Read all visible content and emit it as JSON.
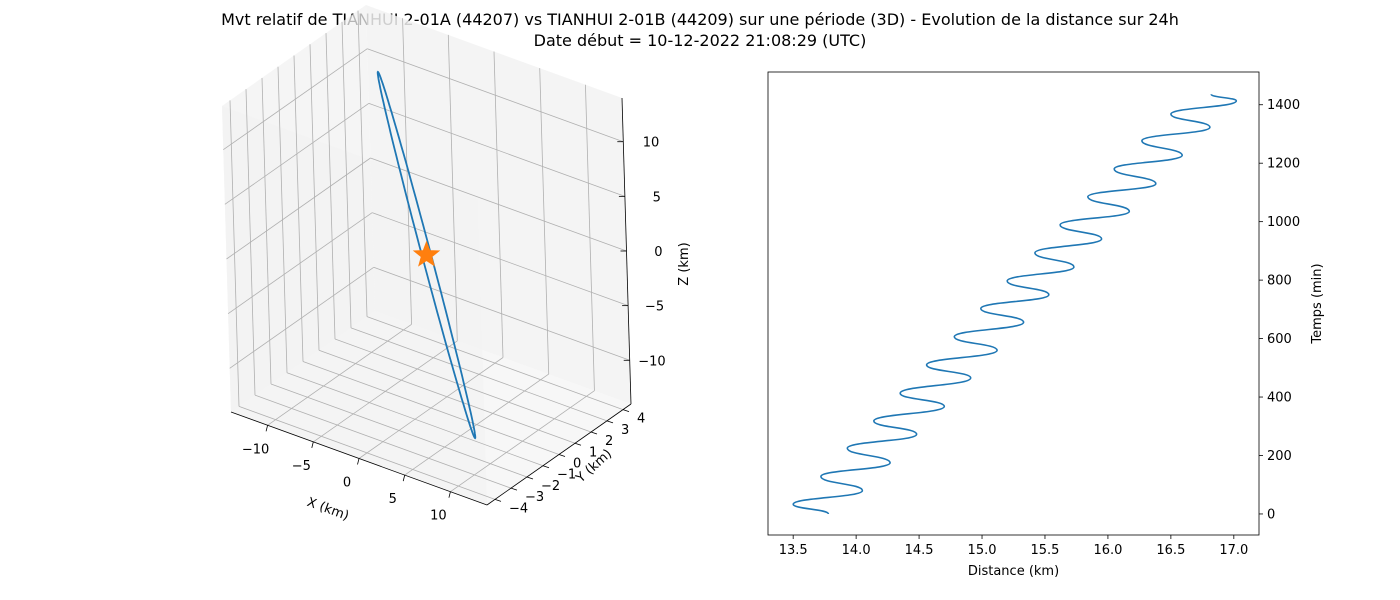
{
  "title_line1": "Mvt relatif de TIANHUI 2-01A (44207) vs TIANHUI 2-01B (44209) sur une période (3D) - Evolution de la distance sur 24h",
  "title_line2": "Date début = 10-12-2022 21:08:29 (UTC)",
  "colors": {
    "series": "#1f77b4",
    "marker": "#ff7f0e",
    "pane": "#f2f2f2",
    "grid": "#b0b0b0"
  },
  "chart_data": [
    {
      "type": "line3d",
      "xlabel": "X (km)",
      "ylabel": "Y (km)",
      "zlabel": "Z (km)",
      "x_ticks": [
        "−10",
        "−5",
        "0",
        "5",
        "10"
      ],
      "y_ticks": [
        "−4",
        "−3",
        "−2",
        "−1",
        "0",
        "1",
        "2",
        "3",
        "4"
      ],
      "z_ticks": [
        "−10",
        "−5",
        "0",
        "5",
        "10"
      ],
      "xlim": [
        -14,
        14
      ],
      "ylim": [
        -4.5,
        4.5
      ],
      "zlim": [
        -14,
        14
      ],
      "grid": true,
      "trajectory_endpoints": [
        {
          "x": -12,
          "y": 4,
          "z": 9
        },
        {
          "x": 12,
          "y": -4,
          "z": -9
        }
      ],
      "marker": {
        "x": 0,
        "y": 0,
        "z": 0,
        "shape": "star"
      }
    },
    {
      "type": "line",
      "xlabel": "Distance (km)",
      "ylabel": "Temps (min)",
      "x_ticks": [
        "13.5",
        "14.0",
        "14.5",
        "15.0",
        "15.5",
        "16.0",
        "16.5",
        "17.0"
      ],
      "y_ticks": [
        "0",
        "200",
        "400",
        "600",
        "800",
        "1000",
        "1200",
        "1400"
      ],
      "xlim": [
        13.3,
        17.2
      ],
      "ylim": [
        -72,
        1512
      ],
      "y_axis_side": "right",
      "series": [
        {
          "description_x": "distance oscillates around a linear drift",
          "start": {
            "time": 0,
            "distance": 13.78
          },
          "end": {
            "time": 1436,
            "distance": 16.82
          },
          "minima": [
            {
              "time": 33,
              "distance": 13.5
            },
            {
              "time": 128,
              "distance": 13.72
            },
            {
              "time": 225,
              "distance": 13.93
            },
            {
              "time": 318,
              "distance": 14.14
            },
            {
              "time": 413,
              "distance": 14.35
            },
            {
              "time": 510,
              "distance": 14.56
            },
            {
              "time": 606,
              "distance": 14.78
            },
            {
              "time": 703,
              "distance": 14.99
            },
            {
              "time": 797,
              "distance": 15.2
            },
            {
              "time": 893,
              "distance": 15.42
            },
            {
              "time": 989,
              "distance": 15.62
            },
            {
              "time": 1085,
              "distance": 15.84
            },
            {
              "time": 1180,
              "distance": 16.05
            },
            {
              "time": 1277,
              "distance": 16.27
            },
            {
              "time": 1368,
              "distance": 16.5
            }
          ],
          "maxima": [
            {
              "time": 80,
              "distance": 14.05
            },
            {
              "time": 175,
              "distance": 14.27
            },
            {
              "time": 273,
              "distance": 14.48
            },
            {
              "time": 368,
              "distance": 14.7
            },
            {
              "time": 465,
              "distance": 14.91
            },
            {
              "time": 560,
              "distance": 15.12
            },
            {
              "time": 656,
              "distance": 15.33
            },
            {
              "time": 750,
              "distance": 15.53
            },
            {
              "time": 845,
              "distance": 15.73
            },
            {
              "time": 941,
              "distance": 15.95
            },
            {
              "time": 1035,
              "distance": 16.17
            },
            {
              "time": 1130,
              "distance": 16.38
            },
            {
              "time": 1227,
              "distance": 16.59
            },
            {
              "time": 1323,
              "distance": 16.81
            },
            {
              "time": 1413,
              "distance": 17.02
            }
          ]
        }
      ]
    }
  ]
}
